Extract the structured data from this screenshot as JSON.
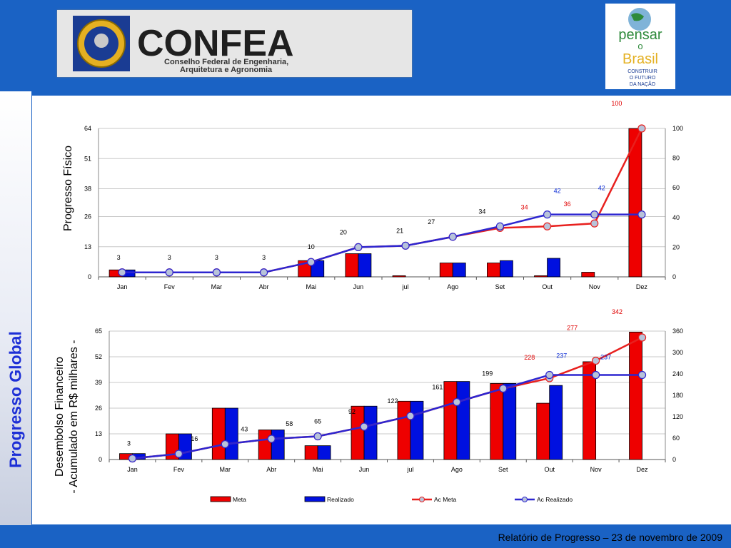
{
  "header": {
    "logo_left": {
      "name": "CONFEA",
      "subtitle_line1": "Conselho Federal de Engenharia,",
      "subtitle_line2": "Arquitetura e Agronomia"
    },
    "logo_right": {
      "line1": "pensar",
      "line2": "o",
      "line3": "Brasil",
      "tag1": "CONSTRUIR",
      "tag2": "O FUTURO",
      "tag3": "DA NAÇÃO"
    }
  },
  "sidebar": {
    "title": "Progresso Global"
  },
  "footer": {
    "text": "Relatório de Progresso – 23 de novembro de 2009"
  },
  "colors": {
    "meta": "#ee0000",
    "realizado": "#0010e0",
    "ac_meta_line": "#e8201e",
    "ac_realizado_line": "#2d26d0",
    "marker_fill": "#b8c3d9",
    "background_blue": "#1a62c4"
  },
  "legend": {
    "meta": "Meta",
    "realizado": "Realizado",
    "ac_meta": "Ac Meta",
    "ac_realizado": "Ac Realizado"
  },
  "chart_data": [
    {
      "type": "bar",
      "ylabel": "Progresso Físico",
      "categories": [
        "Jan",
        "Fev",
        "Mar",
        "Abr",
        "Mai",
        "Jun",
        "jul",
        "Ago",
        "Set",
        "Out",
        "Nov",
        "Dez"
      ],
      "left_axis": {
        "ticks": [
          0,
          13,
          26,
          38,
          51,
          64
        ],
        "ylim": [
          0,
          64
        ]
      },
      "right_axis": {
        "ticks": [
          0,
          20,
          40,
          60,
          80,
          100
        ],
        "ylim": [
          0,
          100
        ]
      },
      "series": [
        {
          "name": "Meta",
          "axis": "left",
          "values": [
            3,
            0,
            0,
            0,
            7,
            10,
            0.5,
            6,
            6,
            0.5,
            2,
            64
          ]
        },
        {
          "name": "Realizado",
          "axis": "left",
          "values": [
            3,
            0,
            0,
            0,
            7,
            10,
            0,
            6,
            7,
            8,
            0,
            0
          ]
        },
        {
          "name": "Ac Meta",
          "axis": "right",
          "values": [
            3,
            3,
            3,
            3,
            10,
            20,
            21,
            27,
            33,
            34,
            36,
            100
          ]
        },
        {
          "name": "Ac Realizado",
          "axis": "right",
          "values": [
            3,
            3,
            3,
            3,
            10,
            20,
            21,
            27,
            34,
            42,
            42,
            42
          ]
        }
      ],
      "annotations": [
        {
          "text": "3",
          "x": "Jan",
          "color": "black"
        },
        {
          "text": "3",
          "x": "Fev",
          "color": "black"
        },
        {
          "text": "3",
          "x": "Mar",
          "color": "black"
        },
        {
          "text": "3",
          "x": "Abr",
          "color": "black"
        },
        {
          "text": "10",
          "x": "Mai",
          "color": "black"
        },
        {
          "text": "20",
          "x": "Jun",
          "color": "black"
        },
        {
          "text": "21",
          "x": "jul",
          "color": "black"
        },
        {
          "text": "27",
          "x": "Ago",
          "color": "black"
        },
        {
          "text": "34",
          "x": "Set",
          "color": "black"
        },
        {
          "text": "34",
          "x": "Out",
          "color": "red"
        },
        {
          "text": "42",
          "x": "Out",
          "color": "blue"
        },
        {
          "text": "36",
          "x": "Out",
          "color": "red"
        },
        {
          "text": "42",
          "x": "Nov",
          "color": "blue"
        },
        {
          "text": "100",
          "x": "Dez",
          "color": "red"
        }
      ]
    },
    {
      "type": "bar",
      "ylabel": "Desembolso Financeiro - Acumulado em R$ milhares -",
      "ylabel_line1": "Desembolso Financeiro",
      "ylabel_line2": "- Acumulado em R$ milhares -",
      "categories": [
        "Jan",
        "Fev",
        "Mar",
        "Abr",
        "Mai",
        "Jun",
        "jul",
        "Ago",
        "Set",
        "Out",
        "Nov",
        "Dez"
      ],
      "left_axis": {
        "ticks": [
          0,
          13,
          26,
          39,
          52,
          65
        ],
        "ylim": [
          0,
          65
        ]
      },
      "right_axis": {
        "ticks": [
          0,
          60,
          120,
          180,
          240,
          300,
          360
        ],
        "ylim": [
          0,
          360
        ]
      },
      "series": [
        {
          "name": "Meta",
          "axis": "left",
          "values": [
            3,
            13,
            26,
            15,
            7,
            27,
            29.5,
            39.5,
            38.5,
            28.5,
            49.5,
            64.5
          ]
        },
        {
          "name": "Realizado",
          "axis": "left",
          "values": [
            3,
            13,
            26,
            15,
            7,
            27,
            29.5,
            39.5,
            38.5,
            37.5,
            0,
            0
          ]
        },
        {
          "name": "Ac Meta",
          "axis": "right",
          "values": [
            3,
            16,
            43,
            58,
            65,
            92,
            122,
            161,
            199,
            228,
            277,
            342
          ]
        },
        {
          "name": "Ac Realizado",
          "axis": "right",
          "values": [
            3,
            16,
            43,
            58,
            65,
            92,
            122,
            161,
            199,
            237,
            237,
            237
          ]
        }
      ],
      "annotations": [
        {
          "text": "3",
          "x": "Jan",
          "color": "black"
        },
        {
          "text": "16",
          "x": "Fev",
          "color": "black"
        },
        {
          "text": "43",
          "x": "Mar",
          "color": "black"
        },
        {
          "text": "58",
          "x": "Abr",
          "color": "black"
        },
        {
          "text": "65",
          "x": "Mai",
          "color": "black"
        },
        {
          "text": "92",
          "x": "Jun",
          "color": "black"
        },
        {
          "text": "122",
          "x": "jul",
          "color": "black"
        },
        {
          "text": "161",
          "x": "Ago",
          "color": "black"
        },
        {
          "text": "199",
          "x": "Set",
          "color": "black"
        },
        {
          "text": "228",
          "x": "Out",
          "color": "red"
        },
        {
          "text": "237",
          "x": "Out",
          "color": "blue"
        },
        {
          "text": "237",
          "x": "Nov",
          "color": "blue"
        },
        {
          "text": "277",
          "x": "Nov",
          "color": "red"
        },
        {
          "text": "342",
          "x": "Dez",
          "color": "red"
        }
      ]
    }
  ]
}
